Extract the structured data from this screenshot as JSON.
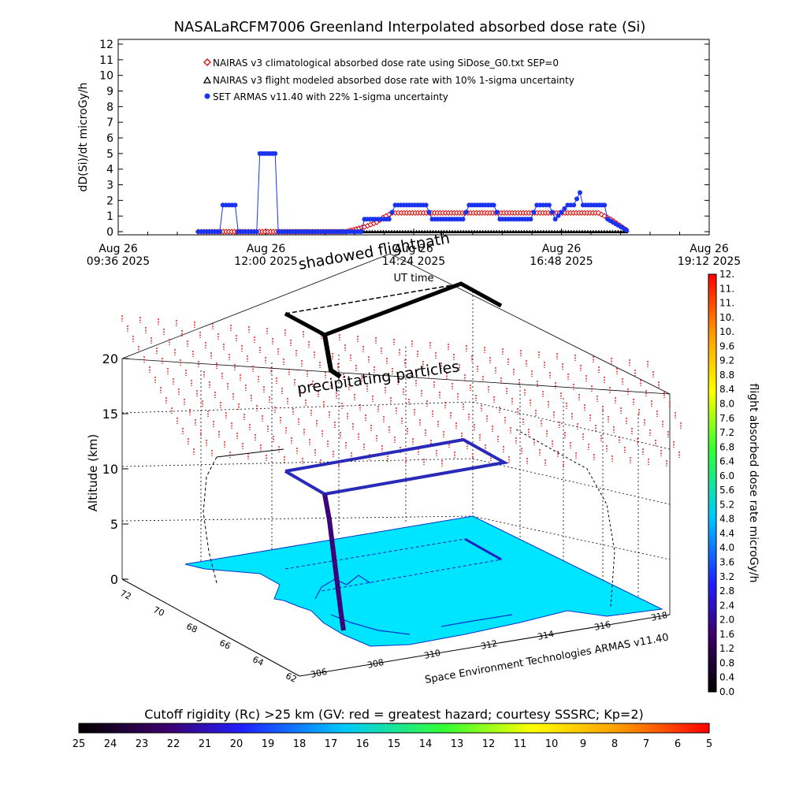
{
  "chart_data": [
    {
      "type": "scatter",
      "title": "NASALaRCFM7006  Greenland Interpolated absorbed dose rate (Si)",
      "ylabel": "dD(Si)/dt microGy/h",
      "xlabel": "UT time",
      "ylim": [
        0,
        12
      ],
      "xlim_hours": [
        9.6,
        19.2
      ],
      "y_ticks": [
        "0",
        "1",
        "2",
        "3",
        "4",
        "5",
        "6",
        "7",
        "8",
        "9",
        "10",
        "11",
        "12"
      ],
      "x_ticks": [
        {
          "line1": "Aug 26",
          "line2": "09:36 2025"
        },
        {
          "line1": "Aug 26",
          "line2": "12:00 2025"
        },
        {
          "line1": "Aug 26",
          "line2": "14:24 2025"
        },
        {
          "line1": "Aug 26",
          "line2": "16:48 2025"
        },
        {
          "line1": "Aug 26",
          "line2": "19:12 2025"
        }
      ],
      "legend_position": "top-left",
      "series": [
        {
          "name": "NAIRAS v3 climatological absorbed dose rate using SiDose_G0.txt SEP=0",
          "color": "#dd0000",
          "marker": "diamond",
          "x_hours": [
            10.9,
            13.3,
            13.6,
            13.8,
            13.9,
            14.05,
            14.2,
            17.4,
            17.6,
            17.75,
            17.9
          ],
          "values": [
            0.0,
            0.0,
            0.3,
            0.6,
            0.9,
            1.2,
            1.2,
            1.2,
            0.8,
            0.4,
            0.0
          ]
        },
        {
          "name": "NAIRAS v3 flight modeled absorbed dose rate with 10% 1-sigma uncertainty",
          "color": "#000000",
          "marker": "triangle",
          "x_hours": [
            10.9,
            17.9
          ],
          "values": [
            0.0,
            0.0
          ]
        },
        {
          "name": "SET ARMAS v11.40 with 22% 1-sigma uncertainty",
          "color": "#1a33ee",
          "marker": "circle",
          "x_hours": [
            10.9,
            11.25,
            11.3,
            11.5,
            11.55,
            11.85,
            11.9,
            12.15,
            12.2,
            13.55,
            13.6,
            14.0,
            14.1,
            14.6,
            14.7,
            15.2,
            15.3,
            15.7,
            15.8,
            16.3,
            16.4,
            16.6,
            16.7,
            16.9,
            17.0,
            17.1,
            17.15,
            17.5,
            17.55,
            17.9
          ],
          "values": [
            0.0,
            0.0,
            1.7,
            1.7,
            0.0,
            0.0,
            5.0,
            5.0,
            0.0,
            0.0,
            0.8,
            0.8,
            1.7,
            1.7,
            0.8,
            0.8,
            1.7,
            1.7,
            0.8,
            0.8,
            1.7,
            1.7,
            0.8,
            1.7,
            1.7,
            2.5,
            1.7,
            1.7,
            0.8,
            0.0
          ]
        }
      ]
    },
    {
      "type": "scatter",
      "xlabel": "Space Environment Technologies ARMAS v11.40",
      "zlabel": "Altitude (km)",
      "z_ticks": [
        "0",
        "5",
        "10",
        "15",
        "20"
      ],
      "lat_ticks": [
        "72",
        "70",
        "68",
        "66",
        "64",
        "62"
      ],
      "lon_ticks": [
        "306",
        "308",
        "310",
        "312",
        "314",
        "316",
        "318"
      ],
      "annotations": [
        "shadowed flightpath",
        "precipitating particles"
      ],
      "flight_altitude_km": [
        0.0,
        7.5,
        10.0,
        10.0,
        10.0,
        10.0,
        7.5,
        0.0
      ]
    },
    {
      "type": "heatmap",
      "title": "flight absorbed dose rate microGy/h",
      "ticks": [
        "0.0",
        "0.4",
        "0.8",
        "1.2",
        "1.6",
        "2.0",
        "2.4",
        "2.8",
        "3.2",
        "3.6",
        "4.0",
        "4.4",
        "4.8",
        "5.2",
        "5.6",
        "6.0",
        "6.4",
        "6.8",
        "7.2",
        "7.6",
        "8.0",
        "8.4",
        "8.8",
        "9.2",
        "9.6",
        "10.",
        "10.",
        "11.",
        "11.",
        "12."
      ],
      "colors": [
        "#000000",
        "#3d006d",
        "#2020ff",
        "#00c8ff",
        "#33ff33",
        "#ffff00",
        "#ff9900",
        "#ff0000"
      ]
    },
    {
      "type": "heatmap",
      "title": "Cutoff rigidity (Rc) >25 km (GV: red = greatest hazard; courtesy SSSRC; Kp=2)",
      "ticks": [
        "25",
        "24",
        "23",
        "22",
        "21",
        "20",
        "19",
        "18",
        "17",
        "16",
        "15",
        "14",
        "13",
        "12",
        "11",
        "10",
        "9",
        "8",
        "7",
        "6",
        "5"
      ],
      "colors": [
        "#000000",
        "#3d006d",
        "#2020ff",
        "#00c8ff",
        "#33ff33",
        "#ffff00",
        "#ff9900",
        "#ff0000"
      ]
    }
  ]
}
